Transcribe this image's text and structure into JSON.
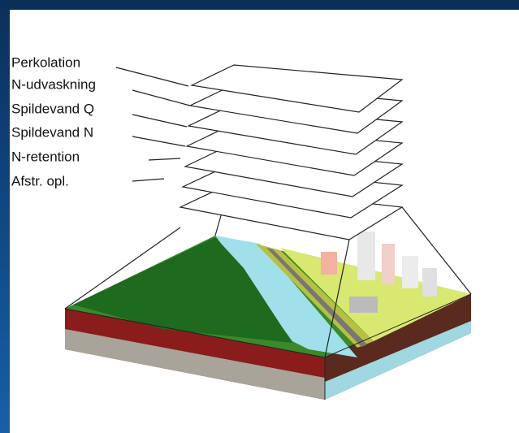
{
  "labels": [
    "Perkolation",
    "N-udvaskning",
    "Spildevand Q",
    "Spildevand N",
    "N-retention",
    "Afstr. opl."
  ]
}
